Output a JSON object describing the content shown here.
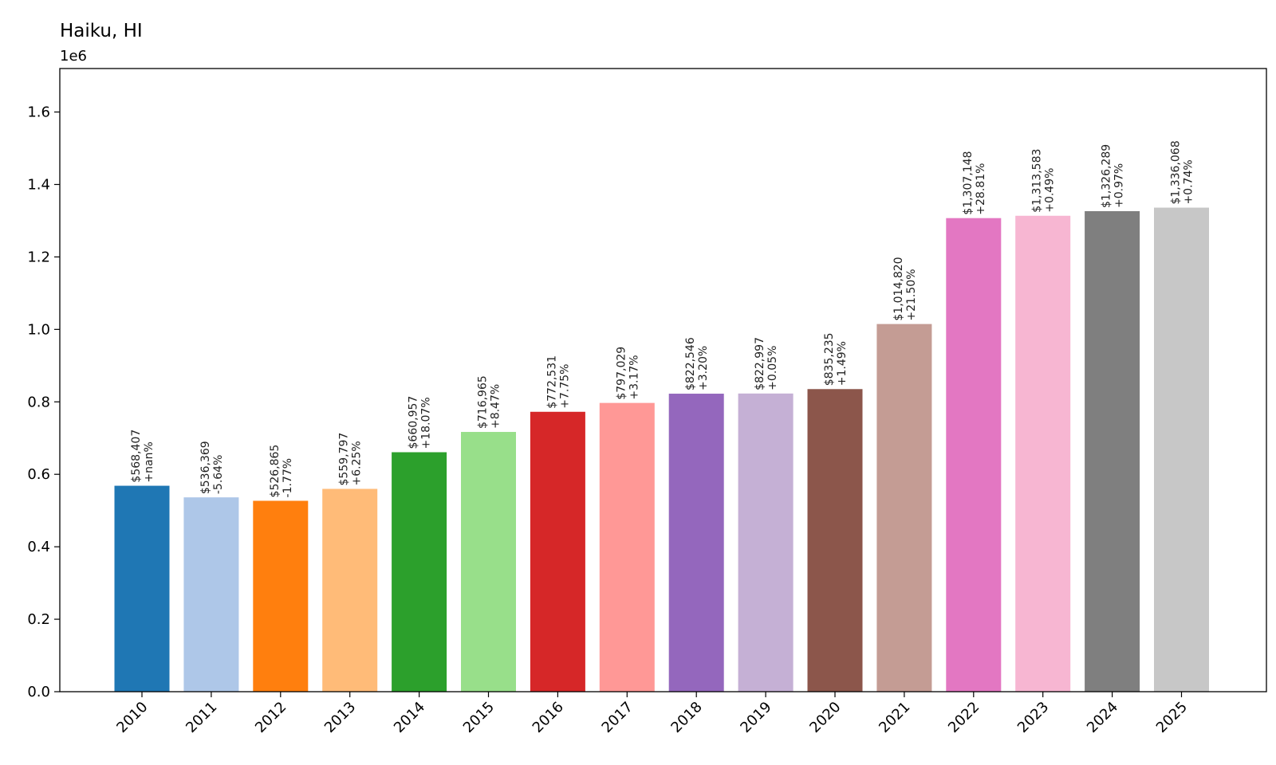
{
  "chart_data": {
    "type": "bar",
    "title": "Haiku, HI",
    "y_offset_label": "1e6",
    "categories": [
      "2010",
      "2011",
      "2012",
      "2013",
      "2014",
      "2015",
      "2016",
      "2017",
      "2018",
      "2019",
      "2020",
      "2021",
      "2022",
      "2023",
      "2024",
      "2025"
    ],
    "values": [
      568407,
      536369,
      526865,
      559797,
      660957,
      716965,
      772531,
      797029,
      822546,
      822997,
      835235,
      1014820,
      1307148,
      1313583,
      1326289,
      1336068
    ],
    "value_labels": [
      "$568,407",
      "$536,369",
      "$526,865",
      "$559,797",
      "$660,957",
      "$716,965",
      "$772,531",
      "$797,029",
      "$822,546",
      "$822,997",
      "$835,235",
      "$1,014,820",
      "$1,307,148",
      "$1,313,583",
      "$1,326,289",
      "$1,336,068"
    ],
    "change_labels": [
      "+nan%",
      "-5.64%",
      "-1.77%",
      "+6.25%",
      "+18.07%",
      "+8.47%",
      "+7.75%",
      "+3.17%",
      "+3.20%",
      "+0.05%",
      "+1.49%",
      "+21.50%",
      "+28.81%",
      "+0.49%",
      "+0.97%",
      "+0.74%"
    ],
    "colors": [
      "#1f77b4",
      "#aec7e8",
      "#ff7f0e",
      "#ffbb78",
      "#2ca02c",
      "#98df8a",
      "#d62728",
      "#ff9896",
      "#9467bd",
      "#c5b0d5",
      "#8c564b",
      "#c49c94",
      "#e377c2",
      "#f7b6d2",
      "#7f7f7f",
      "#c7c7c7"
    ],
    "ylim": [
      0,
      1720000
    ],
    "yticks": [
      0,
      200000,
      400000,
      600000,
      800000,
      1000000,
      1200000,
      1400000,
      1600000
    ],
    "ytick_labels": [
      "0.0",
      "0.2",
      "0.4",
      "0.6",
      "0.8",
      "1.0",
      "1.2",
      "1.4",
      "1.6"
    ],
    "xlabel": "",
    "ylabel": "",
    "grid": false,
    "legend": "none"
  }
}
